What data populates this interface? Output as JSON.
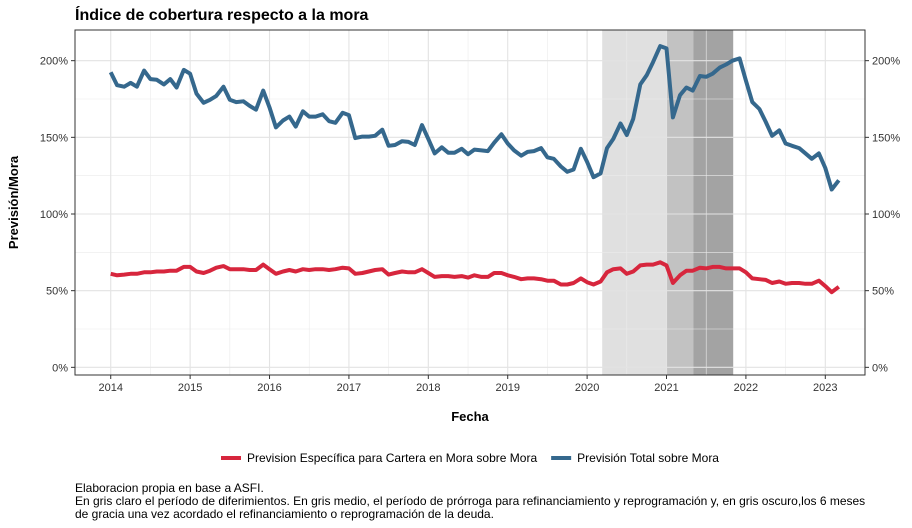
{
  "chart_data": {
    "type": "line",
    "title": "Índice de cobertura respecto a la mora",
    "xlabel": "Fecha",
    "ylabel": "Previsión/Mora",
    "x_ticks": [
      "2014",
      "2015",
      "2016",
      "2017",
      "2018",
      "2019",
      "2020",
      "2021",
      "2022",
      "2023"
    ],
    "y_ticks": [
      "0%",
      "50%",
      "100%",
      "150%",
      "200%"
    ],
    "xlim": [
      2013.55,
      2023.5
    ],
    "ylim": [
      -5,
      220
    ],
    "grid": true,
    "secondary_y_axis": true,
    "legend_position": "bottom",
    "shaded_periods": [
      {
        "start": 2020.19,
        "end": 2021.0,
        "shade": "light",
        "color": "#e0e0e0"
      },
      {
        "start": 2021.0,
        "end": 2021.34,
        "shade": "medium",
        "color": "#c2c2c2"
      },
      {
        "start": 2021.34,
        "end": 2021.84,
        "shade": "dark",
        "color": "#a3a3a3"
      }
    ],
    "series": [
      {
        "name": "Prevision Específica para Cartera en Mora sobre Mora",
        "color": "#d7263d",
        "points": [
          [
            2014.0,
            61
          ],
          [
            2014.08,
            60
          ],
          [
            2014.17,
            60.5
          ],
          [
            2014.25,
            61
          ],
          [
            2014.33,
            61
          ],
          [
            2014.42,
            62
          ],
          [
            2014.5,
            62
          ],
          [
            2014.58,
            62.5
          ],
          [
            2014.67,
            62.5
          ],
          [
            2014.75,
            63
          ],
          [
            2014.83,
            63
          ],
          [
            2014.92,
            65.5
          ],
          [
            2015.0,
            65.5
          ],
          [
            2015.08,
            62.5
          ],
          [
            2015.17,
            61.5
          ],
          [
            2015.25,
            63
          ],
          [
            2015.33,
            65
          ],
          [
            2015.42,
            66
          ],
          [
            2015.5,
            64
          ],
          [
            2015.58,
            64
          ],
          [
            2015.67,
            64
          ],
          [
            2015.75,
            63.5
          ],
          [
            2015.83,
            63.5
          ],
          [
            2015.92,
            67
          ],
          [
            2016.0,
            64
          ],
          [
            2016.08,
            61
          ],
          [
            2016.17,
            62.5
          ],
          [
            2016.25,
            63.5
          ],
          [
            2016.33,
            62.5
          ],
          [
            2016.42,
            64
          ],
          [
            2016.5,
            63.5
          ],
          [
            2016.58,
            64
          ],
          [
            2016.67,
            64
          ],
          [
            2016.75,
            63.5
          ],
          [
            2016.83,
            64
          ],
          [
            2016.92,
            65
          ],
          [
            2017.0,
            64.5
          ],
          [
            2017.08,
            61
          ],
          [
            2017.17,
            61.5
          ],
          [
            2017.25,
            62.5
          ],
          [
            2017.33,
            63.5
          ],
          [
            2017.42,
            64
          ],
          [
            2017.5,
            60.5
          ],
          [
            2017.58,
            61.5
          ],
          [
            2017.67,
            62.5
          ],
          [
            2017.75,
            62
          ],
          [
            2017.83,
            62
          ],
          [
            2017.92,
            64
          ],
          [
            2018.0,
            61.5
          ],
          [
            2018.08,
            59
          ],
          [
            2018.17,
            59.5
          ],
          [
            2018.25,
            59.5
          ],
          [
            2018.33,
            59
          ],
          [
            2018.42,
            59.5
          ],
          [
            2018.5,
            58.5
          ],
          [
            2018.58,
            60
          ],
          [
            2018.67,
            59
          ],
          [
            2018.75,
            59
          ],
          [
            2018.83,
            61.5
          ],
          [
            2018.92,
            61.5
          ],
          [
            2019.0,
            60
          ],
          [
            2019.08,
            59
          ],
          [
            2019.17,
            57.5
          ],
          [
            2019.25,
            58
          ],
          [
            2019.33,
            58
          ],
          [
            2019.42,
            57.5
          ],
          [
            2019.5,
            56.5
          ],
          [
            2019.58,
            56.5
          ],
          [
            2019.67,
            54
          ],
          [
            2019.75,
            54
          ],
          [
            2019.83,
            55
          ],
          [
            2019.92,
            58
          ],
          [
            2020.0,
            55.5
          ],
          [
            2020.08,
            54
          ],
          [
            2020.17,
            56
          ],
          [
            2020.25,
            62
          ],
          [
            2020.33,
            64
          ],
          [
            2020.42,
            64.5
          ],
          [
            2020.5,
            61
          ],
          [
            2020.58,
            62.5
          ],
          [
            2020.67,
            66.5
          ],
          [
            2020.75,
            67
          ],
          [
            2020.83,
            67
          ],
          [
            2020.92,
            68.5
          ],
          [
            2021.0,
            66.5
          ],
          [
            2021.08,
            55
          ],
          [
            2021.17,
            60
          ],
          [
            2021.25,
            63
          ],
          [
            2021.33,
            63
          ],
          [
            2021.42,
            65
          ],
          [
            2021.5,
            64.5
          ],
          [
            2021.58,
            65.5
          ],
          [
            2021.67,
            65.5
          ],
          [
            2021.75,
            64.5
          ],
          [
            2021.83,
            64.5
          ],
          [
            2021.92,
            64.5
          ],
          [
            2022.0,
            62
          ],
          [
            2022.08,
            58
          ],
          [
            2022.17,
            57.5
          ],
          [
            2022.25,
            57
          ],
          [
            2022.33,
            55
          ],
          [
            2022.42,
            56
          ],
          [
            2022.5,
            54.5
          ],
          [
            2022.58,
            55
          ],
          [
            2022.67,
            55
          ],
          [
            2022.75,
            54.5
          ],
          [
            2022.83,
            54.5
          ],
          [
            2022.92,
            56.5
          ],
          [
            2023.0,
            53
          ],
          [
            2023.08,
            49
          ],
          [
            2023.17,
            52.5
          ]
        ]
      },
      {
        "name": "Previsión Total sobre Mora",
        "color": "#35688d",
        "points": [
          [
            2014.0,
            192.5
          ],
          [
            2014.08,
            184
          ],
          [
            2014.17,
            183
          ],
          [
            2014.25,
            185.5
          ],
          [
            2014.33,
            183
          ],
          [
            2014.42,
            193.5
          ],
          [
            2014.5,
            188
          ],
          [
            2014.58,
            187.5
          ],
          [
            2014.67,
            184.5
          ],
          [
            2014.75,
            188
          ],
          [
            2014.83,
            182.5
          ],
          [
            2014.92,
            194
          ],
          [
            2015.0,
            191.5
          ],
          [
            2015.08,
            178.5
          ],
          [
            2015.17,
            172.5
          ],
          [
            2015.25,
            174.5
          ],
          [
            2015.33,
            177
          ],
          [
            2015.42,
            183
          ],
          [
            2015.5,
            174.5
          ],
          [
            2015.58,
            173
          ],
          [
            2015.67,
            173.5
          ],
          [
            2015.75,
            170.5
          ],
          [
            2015.83,
            168
          ],
          [
            2015.92,
            180.5
          ],
          [
            2016.0,
            169.5
          ],
          [
            2016.08,
            156.5
          ],
          [
            2016.17,
            161
          ],
          [
            2016.25,
            163.5
          ],
          [
            2016.33,
            157
          ],
          [
            2016.42,
            167
          ],
          [
            2016.5,
            163.5
          ],
          [
            2016.58,
            163.5
          ],
          [
            2016.67,
            165
          ],
          [
            2016.75,
            160.5
          ],
          [
            2016.83,
            159.5
          ],
          [
            2016.92,
            166
          ],
          [
            2017.0,
            164.5
          ],
          [
            2017.08,
            149.5
          ],
          [
            2017.17,
            150.5
          ],
          [
            2017.25,
            150.5
          ],
          [
            2017.33,
            151
          ],
          [
            2017.42,
            155
          ],
          [
            2017.5,
            144.5
          ],
          [
            2017.58,
            145
          ],
          [
            2017.67,
            147.5
          ],
          [
            2017.75,
            147
          ],
          [
            2017.83,
            145
          ],
          [
            2017.92,
            158
          ],
          [
            2018.0,
            149
          ],
          [
            2018.08,
            139.5
          ],
          [
            2018.17,
            143.5
          ],
          [
            2018.25,
            140
          ],
          [
            2018.33,
            140
          ],
          [
            2018.42,
            142.5
          ],
          [
            2018.5,
            139
          ],
          [
            2018.58,
            142
          ],
          [
            2018.67,
            141.5
          ],
          [
            2018.75,
            141
          ],
          [
            2018.83,
            146.5
          ],
          [
            2018.92,
            152
          ],
          [
            2019.0,
            146
          ],
          [
            2019.08,
            141.5
          ],
          [
            2019.17,
            138
          ],
          [
            2019.25,
            140.5
          ],
          [
            2019.33,
            141
          ],
          [
            2019.42,
            143
          ],
          [
            2019.5,
            137
          ],
          [
            2019.58,
            136
          ],
          [
            2019.67,
            131
          ],
          [
            2019.75,
            127.5
          ],
          [
            2019.83,
            129
          ],
          [
            2019.92,
            142.5
          ],
          [
            2020.0,
            134
          ],
          [
            2020.08,
            124
          ],
          [
            2020.17,
            126.5
          ],
          [
            2020.25,
            143
          ],
          [
            2020.33,
            149
          ],
          [
            2020.42,
            159
          ],
          [
            2020.5,
            151.5
          ],
          [
            2020.58,
            162
          ],
          [
            2020.67,
            184.5
          ],
          [
            2020.75,
            190.5
          ],
          [
            2020.83,
            199
          ],
          [
            2020.92,
            209.5
          ],
          [
            2021.0,
            208
          ],
          [
            2021.08,
            163
          ],
          [
            2021.17,
            177.5
          ],
          [
            2021.25,
            182.5
          ],
          [
            2021.33,
            180.5
          ],
          [
            2021.42,
            190
          ],
          [
            2021.5,
            189.5
          ],
          [
            2021.58,
            191.5
          ],
          [
            2021.67,
            195.5
          ],
          [
            2021.75,
            197.5
          ],
          [
            2021.83,
            200
          ],
          [
            2021.92,
            201.5
          ],
          [
            2022.0,
            187
          ],
          [
            2022.08,
            173
          ],
          [
            2022.17,
            168.5
          ],
          [
            2022.25,
            160
          ],
          [
            2022.33,
            151
          ],
          [
            2022.42,
            154.5
          ],
          [
            2022.5,
            146
          ],
          [
            2022.58,
            144.5
          ],
          [
            2022.67,
            143
          ],
          [
            2022.75,
            139.5
          ],
          [
            2022.83,
            136
          ],
          [
            2022.92,
            139.5
          ],
          [
            2023.0,
            130
          ],
          [
            2023.08,
            116
          ],
          [
            2023.17,
            122
          ]
        ]
      }
    ]
  },
  "caption": {
    "line1": "Elaboracion propia en base a ASFI.",
    "line2": "En gris claro el período de diferimientos. En gris medio, el período de prórroga para refinanciamiento y reprogramación y, en gris oscuro,los 6 meses",
    "line3": "de gracia una vez acordado el refinanciamiento o reprogramación de la deuda."
  }
}
